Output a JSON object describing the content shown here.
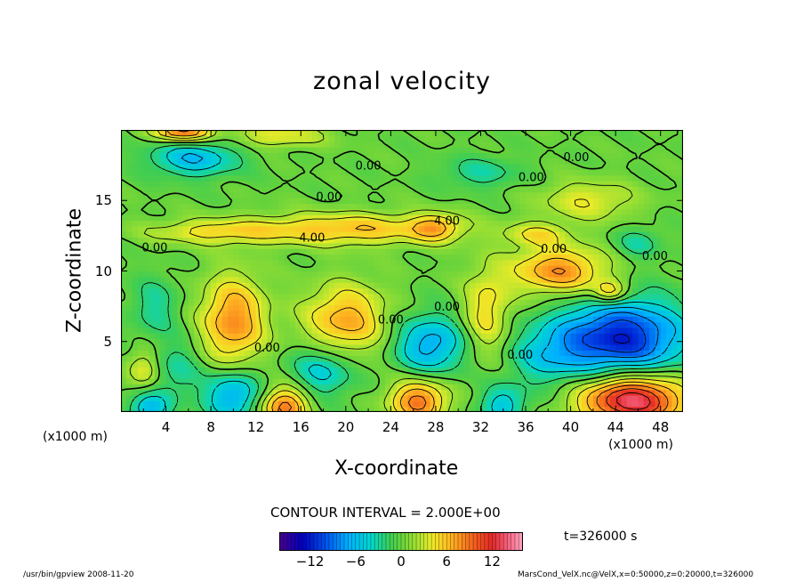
{
  "chart_data": {
    "type": "heatmap",
    "title": "zonal velocity",
    "xlabel": "X-coordinate",
    "ylabel": "Z-coordinate",
    "x_unit_label": "(x1000 m)",
    "x_ticks": [
      "4",
      "8",
      "12",
      "16",
      "20",
      "24",
      "28",
      "32",
      "36",
      "40",
      "44",
      "48"
    ],
    "y_ticks": [
      "5",
      "10",
      "15"
    ],
    "xlim": [
      0,
      50
    ],
    "ylim": [
      0,
      20
    ],
    "contour_interval_text": "CONTOUR INTERVAL = 2.000E+00",
    "contour_labels": [
      {
        "text": "0.00",
        "x": 22,
        "y": 17.4
      },
      {
        "text": "0.00",
        "x": 40.5,
        "y": 18.0
      },
      {
        "text": "0.00",
        "x": 36.5,
        "y": 16.6
      },
      {
        "text": "0.00",
        "x": 18.5,
        "y": 15.2
      },
      {
        "text": "4.00",
        "x": 29.0,
        "y": 13.5
      },
      {
        "text": "4.00",
        "x": 17.0,
        "y": 12.3
      },
      {
        "text": "0.00",
        "x": 3.0,
        "y": 11.6
      },
      {
        "text": "0.00",
        "x": 38.5,
        "y": 11.5
      },
      {
        "text": "0.00",
        "x": 47.5,
        "y": 11.0
      },
      {
        "text": "0.00",
        "x": 24.0,
        "y": 6.5
      },
      {
        "text": "0.00",
        "x": 29.0,
        "y": 7.4
      },
      {
        "text": "0.00",
        "x": 35.5,
        "y": 4.0
      },
      {
        "text": "0.00",
        "x": 13.0,
        "y": 4.5
      }
    ],
    "features": [
      {
        "x": 10.0,
        "y": 6.5,
        "value": 8,
        "sx": 2.0,
        "sy": 2.2
      },
      {
        "x": 20.0,
        "y": 6.5,
        "value": 7,
        "sx": 2.6,
        "sy": 1.8
      },
      {
        "x": 32.5,
        "y": 7.0,
        "value": 5,
        "sx": 1.5,
        "sy": 2.2
      },
      {
        "x": 27.5,
        "y": 4.8,
        "value": -7,
        "sx": 2.3,
        "sy": 1.5
      },
      {
        "x": 44.5,
        "y": 5.3,
        "value": -12,
        "sx": 4.0,
        "sy": 1.9
      },
      {
        "x": 38.0,
        "y": 4.0,
        "value": -4,
        "sx": 2.5,
        "sy": 1.5
      },
      {
        "x": 18.0,
        "y": 3.0,
        "value": -5,
        "sx": 2.0,
        "sy": 1.3
      },
      {
        "x": 10.0,
        "y": 1.2,
        "value": -7,
        "sx": 1.8,
        "sy": 1.3
      },
      {
        "x": 5.0,
        "y": 3.0,
        "value": -3,
        "sx": 1.5,
        "sy": 1.5
      },
      {
        "x": 2.0,
        "y": 3.0,
        "value": 4,
        "sx": 1.0,
        "sy": 1.0
      },
      {
        "x": 14.5,
        "y": 0.4,
        "value": 9,
        "sx": 1.5,
        "sy": 1.0
      },
      {
        "x": 26.5,
        "y": 0.8,
        "value": 9,
        "sx": 1.8,
        "sy": 1.1
      },
      {
        "x": 34.0,
        "y": 0.5,
        "value": -5,
        "sx": 1.5,
        "sy": 1.0
      },
      {
        "x": 2.5,
        "y": 0.3,
        "value": -6,
        "sx": 1.3,
        "sy": 0.8
      },
      {
        "x": 45.5,
        "y": 0.9,
        "value": 14,
        "sx": 3.3,
        "sy": 1.3
      },
      {
        "x": 6.5,
        "y": 18.0,
        "value": -6,
        "sx": 2.8,
        "sy": 0.9
      },
      {
        "x": 5.5,
        "y": 19.9,
        "value": 9,
        "sx": 1.8,
        "sy": 0.5
      },
      {
        "x": 14.0,
        "y": 19.6,
        "value": 4,
        "sx": 3.0,
        "sy": 0.6
      },
      {
        "x": 20.0,
        "y": 13.0,
        "value": 6,
        "sx": 6.5,
        "sy": 0.8
      },
      {
        "x": 8.0,
        "y": 12.8,
        "value": 4,
        "sx": 4.0,
        "sy": 0.6
      },
      {
        "x": 28.0,
        "y": 13.1,
        "value": 5,
        "sx": 1.5,
        "sy": 0.7
      },
      {
        "x": 39.0,
        "y": 10.0,
        "value": 8,
        "sx": 3.0,
        "sy": 1.2
      },
      {
        "x": 43.5,
        "y": 8.5,
        "value": 6,
        "sx": 1.0,
        "sy": 0.6
      },
      {
        "x": 3.0,
        "y": 7.5,
        "value": -3,
        "sx": 1.5,
        "sy": 1.5
      },
      {
        "x": 41.5,
        "y": 15.0,
        "value": 4,
        "sx": 3.0,
        "sy": 1.0
      },
      {
        "x": 37.0,
        "y": 12.6,
        "value": 4,
        "sx": 2.0,
        "sy": 0.6
      },
      {
        "x": 32.0,
        "y": 17.0,
        "value": -3,
        "sx": 2.5,
        "sy": 0.8
      },
      {
        "x": 46.0,
        "y": 12.0,
        "value": -3,
        "sx": 1.5,
        "sy": 0.8
      }
    ],
    "colorbar": {
      "min": -16,
      "max": 16,
      "ticks": [
        "−12",
        "−6",
        "0",
        "6",
        "12"
      ],
      "tick_values": [
        -12,
        -6,
        0,
        6,
        12
      ]
    },
    "time_text": "t=326000 s"
  },
  "footer": {
    "left": "/usr/bin/gpview  2008-11-20",
    "right": "MarsCond_VelX.nc@VelX,x=0:50000,z=0:20000,t=326000"
  }
}
